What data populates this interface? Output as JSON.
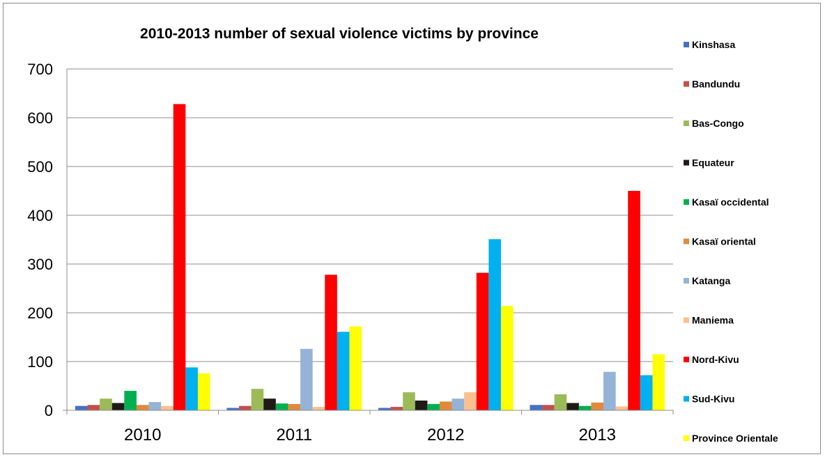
{
  "chart_data": {
    "type": "bar",
    "title": "2010-2013 number of sexual violence victims by province",
    "xlabel": "",
    "ylabel": "",
    "categories": [
      "2010",
      "2011",
      "2012",
      "2013"
    ],
    "ylim": [
      0,
      700
    ],
    "yticks": [
      0,
      100,
      200,
      300,
      400,
      500,
      600,
      700
    ],
    "grid": true,
    "legend_position": "right",
    "series": [
      {
        "name": "Kinshasa",
        "color": "#4472C4",
        "values": [
          9,
          5,
          5,
          11
        ]
      },
      {
        "name": "Bandundu",
        "color": "#C0504D",
        "values": [
          11,
          9,
          7,
          11
        ]
      },
      {
        "name": "Bas-Congo",
        "color": "#9BBB59",
        "values": [
          24,
          44,
          37,
          33
        ]
      },
      {
        "name": "Equateur",
        "color": "#1F1A17",
        "values": [
          15,
          24,
          20,
          15
        ]
      },
      {
        "name": "Kasaï occidental",
        "color": "#00B050",
        "values": [
          40,
          14,
          13,
          9
        ]
      },
      {
        "name": "Kasaï oriental",
        "color": "#E08A3C",
        "values": [
          11,
          13,
          18,
          16
        ]
      },
      {
        "name": "Katanga",
        "color": "#95B3D7",
        "values": [
          17,
          126,
          24,
          79
        ]
      },
      {
        "name": "Maniema",
        "color": "#FAC090",
        "values": [
          9,
          7,
          37,
          8
        ]
      },
      {
        "name": "Nord-Kivu",
        "color": "#FF0000",
        "values": [
          628,
          278,
          282,
          450
        ]
      },
      {
        "name": "Sud-Kivu",
        "color": "#00B0F0",
        "values": [
          88,
          161,
          351,
          72
        ]
      },
      {
        "name": "Province Orientale",
        "color": "#FFFF00",
        "values": [
          76,
          172,
          214,
          115
        ]
      }
    ]
  }
}
